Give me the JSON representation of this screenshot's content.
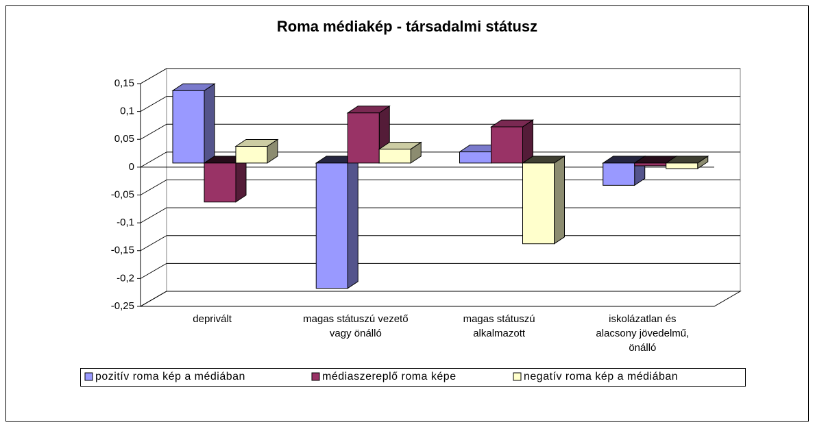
{
  "chart_data": {
    "type": "bar3d",
    "title": "Roma médiakép - társadalmi státusz",
    "categories": [
      [
        "deprivált"
      ],
      [
        "magas státuszú vezető",
        "vagy önálló"
      ],
      [
        "magas státuszú",
        "alkalmazott"
      ],
      [
        "iskolázatlan és",
        "alacsony jövedelmű,",
        "önálló"
      ]
    ],
    "series": [
      {
        "name": "pozitív roma kép a médiában",
        "color": "#9999ff",
        "values": [
          0.13,
          -0.225,
          0.02,
          -0.04
        ]
      },
      {
        "name": "médiaszereplő roma képe",
        "color": "#993366",
        "values": [
          -0.07,
          0.09,
          0.065,
          -0.005
        ]
      },
      {
        "name": "negatív roma kép a médiában",
        "color": "#ffffcc",
        "values": [
          0.03,
          0.025,
          -0.145,
          -0.01
        ]
      }
    ],
    "ylim": [
      -0.25,
      0.15
    ],
    "yticks": [
      {
        "value": -0.25,
        "label": "-0,25"
      },
      {
        "value": -0.2,
        "label": "-0,2"
      },
      {
        "value": -0.15,
        "label": "-0,15"
      },
      {
        "value": -0.1,
        "label": "-0,1"
      },
      {
        "value": -0.05,
        "label": "-0,05"
      },
      0,
      {
        "value": 0.05,
        "label": "0,05"
      },
      {
        "value": 0.1,
        "label": "0,1"
      },
      {
        "value": 0.15,
        "label": "0,15"
      }
    ],
    "grid": true,
    "legend": "bottom"
  }
}
